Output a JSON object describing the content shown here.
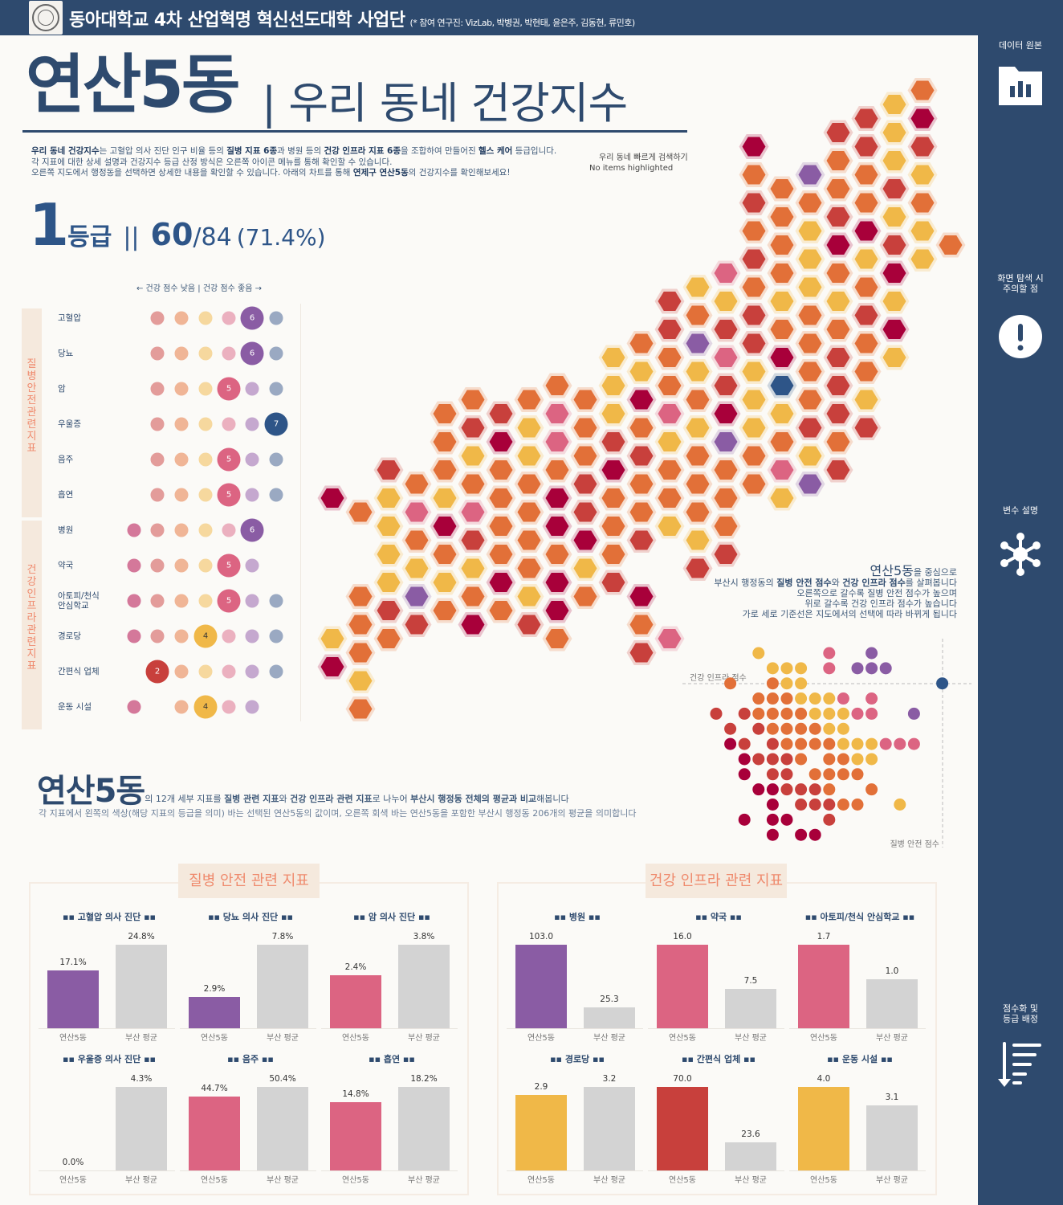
{
  "header": {
    "org": "동아대학교 4차 산업혁명 혁신선도대학 사업단",
    "credits": "(* 참여 연구진: VizLab, 박병권, 박현태, 윤은주, 김동현, 류민호)"
  },
  "sidebar": [
    {
      "label": "데이터 원본",
      "icon": "folder-chart-icon"
    },
    {
      "label": "화면 탐색 시 주의할 점",
      "icon": "exclamation-icon"
    },
    {
      "label": "변수 설명",
      "icon": "network-icon"
    },
    {
      "label": "점수화 및 등급 배정",
      "icon": "sort-descending-icon"
    }
  ],
  "title": {
    "district": "연산5동",
    "subtitle": "| 우리 동네 건강지수"
  },
  "intro": [
    [
      {
        "t": "우리 동네 건강지수",
        "b": true
      },
      {
        "t": "는 고혈압 의사 진단 인구 비율 등의 "
      },
      {
        "t": "질병 지표 6종",
        "b": true
      },
      {
        "t": "과 병원 등의 "
      },
      {
        "t": "건강 인프라 지표 6종",
        "b": true
      },
      {
        "t": "을 조합하여 만들어진 "
      },
      {
        "t": "헬스 케어",
        "b": true
      },
      {
        "t": " 등급입니다."
      }
    ],
    [
      {
        "t": "각 지표에 대한 상세 설명과 건강지수 등급 산정 방식은 오른쪽 아이콘 메뉴를 통해 확인할 수 있습니다."
      }
    ],
    [
      {
        "t": "오른쪽 지도에서 행정동을 선택하면 상세한 내용을 확인할 수 있습니다. 아래의 차트를 통해 "
      },
      {
        "t": "연제구 연산5동",
        "b": true
      },
      {
        "t": "의 건강지수를 확인해보세요!"
      }
    ]
  ],
  "search": {
    "label": "우리 동네 빠르게 검색하기",
    "status": "No items highlighted"
  },
  "summary": {
    "grade": "1",
    "grade_unit": "등급",
    "separator": "||",
    "score": "60",
    "total": "/84",
    "percent": "(71.4%)"
  },
  "dot_plot": {
    "legend": "← 건강 점수 낮음  |  건강 점수 좋음 →",
    "groups": [
      {
        "label": "질병안전관련지표",
        "rows": [
          {
            "name": "고혈압",
            "grades": [
              2,
              3,
              4,
              5,
              6,
              7
            ],
            "selected": 6
          },
          {
            "name": "당뇨",
            "grades": [
              2,
              3,
              4,
              5,
              6,
              7
            ],
            "selected": 6
          },
          {
            "name": "암",
            "grades": [
              2,
              3,
              4,
              5,
              6,
              7
            ],
            "selected": 5
          },
          {
            "name": "우울증",
            "grades": [
              2,
              3,
              4,
              5,
              6,
              7
            ],
            "selected": 7
          },
          {
            "name": "음주",
            "grades": [
              2,
              3,
              4,
              5,
              6,
              7
            ],
            "selected": 5
          },
          {
            "name": "흡연",
            "grades": [
              2,
              3,
              4,
              5,
              6,
              7
            ],
            "selected": 5
          }
        ]
      },
      {
        "label": "건강인프라관련지표",
        "rows": [
          {
            "name": "병원",
            "grades": [
              1,
              2,
              3,
              4,
              5,
              6
            ],
            "selected": 6
          },
          {
            "name": "약국",
            "grades": [
              1,
              2,
              3,
              4,
              5,
              6
            ],
            "selected": 5
          },
          {
            "name": "아토피/천식\n안심학교",
            "grades": [
              1,
              2,
              3,
              4,
              5,
              6,
              7
            ],
            "selected": 5
          },
          {
            "name": "경로당",
            "grades": [
              1,
              2,
              3,
              4,
              5,
              6,
              7
            ],
            "selected": 4
          },
          {
            "name": "간편식 업체",
            "grades": [
              2,
              3,
              4,
              5,
              6,
              7
            ],
            "selected": 2
          },
          {
            "name": "운동 시설",
            "grades": [
              1,
              3,
              4,
              5,
              6
            ],
            "selected": 4
          }
        ]
      }
    ]
  },
  "colors": {
    "grade": {
      "1": "#a8003a",
      "2": "#c8403c",
      "3": "#e27038",
      "4": "#f0b848",
      "5": "#dc6482",
      "6": "#8a5ca4",
      "7": "#2e5588"
    },
    "grade_light": {
      "1": "#d4789a",
      "2": "#e39c9a",
      "3": "#f0b596",
      "4": "#f6d89e",
      "5": "#ebb0bf",
      "6": "#c5a8cf",
      "7": "#9aa9c2"
    },
    "average": "#d3d3d3",
    "navy": "#2e4a6e"
  },
  "hex_map": {
    "selected_grade": 7,
    "columns": [
      {
        "start": 15,
        "grades": "1000041"
      },
      {
        "start": 15,
        "grades": "30033343"
      },
      {
        "start": 14,
        "grades": "2444423"
      },
      {
        "start": 14,
        "grades": "353462"
      },
      {
        "start": 12,
        "grades": "33341343"
      },
      {
        "start": 11,
        "grades": "324352431"
      },
      {
        "start": 12,
        "grades": "21333313"
      },
      {
        "start": 11,
        "grades": "344333342"
      },
      {
        "start": 11,
        "grades": "3553113113"
      },
      {
        "start": 11,
        "grades": "33322143"
      },
      {
        "start": 10,
        "grades": "444213332"
      },
      {
        "start": 9,
        "grades": "341323320132"
      },
      {
        "start": 8,
        "grades": "2233543340005"
      },
      {
        "start": 7,
        "grades": "43643433342"
      },
      {
        "start": 7,
        "grades": "54252163332"
      },
      {
        "start": 2,
        "grades": "1323232244433"
      },
      {
        "start": 4,
        "grades": "333343174354"
      },
      {
        "start": 3,
        "grades": "634443333246"
      },
      {
        "start": 2,
        "grades": "2332134322232"
      },
      {
        "start": 1,
        "grades": "223314323342"
      },
      {
        "start": 1,
        "grades": "4442421414"
      },
      {
        "start": 0,
        "grades": "3124344"
      },
      {
        "start": 6,
        "grades": "3"
      }
    ]
  },
  "scatter": {
    "desc": [
      [
        {
          "t": "연산5동",
          "h": true
        },
        {
          "t": "을 중심으로"
        }
      ],
      [
        {
          "t": "부산시 행정동의 "
        },
        {
          "t": "질병 안전 점수",
          "b": true
        },
        {
          "t": "와 "
        },
        {
          "t": "건강 인프라 점수",
          "b": true
        },
        {
          "t": "를 살펴봅니다"
        }
      ],
      [
        {
          "t": "오른쪽으로 갈수록 질병 안전 점수가 높으며"
        }
      ],
      [
        {
          "t": "위로 갈수록 건강 인프라 점수가 높습니다"
        }
      ],
      [
        {
          "t": "가로 세로 기준선은 지도에서의 선택에 따라 바뀌게 됩니다"
        }
      ]
    ]
  },
  "chart_data": {
    "type": "scatter",
    "xlabel": "질병 안전 점수",
    "ylabel": "건강 인프라 점수",
    "note": "rows top→bottom = health infra score bins high→low; chars left→right = disease safety score bins low→high; digit = grade colour (0 = none)",
    "grid_rows": [
      "00040000500600000",
      "00004440506660000",
      "03003440000000007",
      "00033344450500000",
      "20233334445500600",
      "02023333440000000",
      "01202333344455500",
      "00122230334400000",
      "00102203333000000",
      "00011222300300000",
      "00001022233004000",
      "00101100200000000",
      "00001011000000000"
    ],
    "reference": {
      "x_bin": 16,
      "y_row": 2
    }
  },
  "comparison": {
    "title_big": "연산5동",
    "title_rest": [
      {
        "t": "의 12개 세부 지표를 "
      },
      {
        "t": "질병 관련 지표",
        "b": true
      },
      {
        "t": "와 "
      },
      {
        "t": "건강 인프라 관련 지표",
        "b": true
      },
      {
        "t": "로 나누어 "
      },
      {
        "t": "부산시 행정동 전체의 평균과 비교",
        "b": true
      },
      {
        "t": "해봅니다"
      }
    ],
    "subtitle": "각 지표에서 왼쪽의 색상(해당 지표의 등급을 의미) 바는 선택된 연산5동의 값이며, 오른쪽 회색 바는 연산5동을 포함한 부산시 행정동 206개의 평균을 의미합니다",
    "cat_local": "연산5동",
    "cat_avg": "부산 평균",
    "panels": [
      {
        "title": "질병 안전 관련 지표",
        "charts": [
          {
            "title": "▪▪ 고혈압 의사 진단 ▪▪",
            "local": 17.1,
            "avg": 24.8,
            "local_label": "17.1%",
            "avg_label": "24.8%",
            "grade": 6
          },
          {
            "title": "▪▪ 당뇨 의사 진단 ▪▪",
            "local": 2.9,
            "avg": 7.8,
            "local_label": "2.9%",
            "avg_label": "7.8%",
            "grade": 6
          },
          {
            "title": "▪▪ 암 의사 진단 ▪▪",
            "local": 2.4,
            "avg": 3.8,
            "local_label": "2.4%",
            "avg_label": "3.8%",
            "grade": 5
          },
          {
            "title": "▪▪ 우울증 의사 진단 ▪▪",
            "local": 0.0,
            "avg": 4.3,
            "local_label": "0.0%",
            "avg_label": "4.3%",
            "grade": 7
          },
          {
            "title": "▪▪ 음주 ▪▪",
            "local": 44.7,
            "avg": 50.4,
            "local_label": "44.7%",
            "avg_label": "50.4%",
            "grade": 5
          },
          {
            "title": "▪▪ 흡연 ▪▪",
            "local": 14.8,
            "avg": 18.2,
            "local_label": "14.8%",
            "avg_label": "18.2%",
            "grade": 5
          }
        ]
      },
      {
        "title": "건강 인프라 관련 지표",
        "charts": [
          {
            "title": "▪▪ 병원 ▪▪",
            "local": 103.0,
            "avg": 25.3,
            "local_label": "103.0",
            "avg_label": "25.3",
            "grade": 6
          },
          {
            "title": "▪▪ 약국 ▪▪",
            "local": 16.0,
            "avg": 7.5,
            "local_label": "16.0",
            "avg_label": "7.5",
            "grade": 5
          },
          {
            "title": "▪▪ 아토피/천식 안심학교 ▪▪",
            "local": 1.7,
            "avg": 1.0,
            "local_label": "1.7",
            "avg_label": "1.0",
            "grade": 5
          },
          {
            "title": "▪▪ 경로당 ▪▪",
            "local": 2.9,
            "avg": 3.2,
            "local_label": "2.9",
            "avg_label": "3.2",
            "grade": 4
          },
          {
            "title": "▪▪ 간편식 업체 ▪▪",
            "local": 70.0,
            "avg": 23.6,
            "local_label": "70.0",
            "avg_label": "23.6",
            "grade": 2
          },
          {
            "title": "▪▪ 운동 시설 ▪▪",
            "local": 4.0,
            "avg": 3.1,
            "local_label": "4.0",
            "avg_label": "3.1",
            "grade": 4
          }
        ]
      }
    ]
  }
}
